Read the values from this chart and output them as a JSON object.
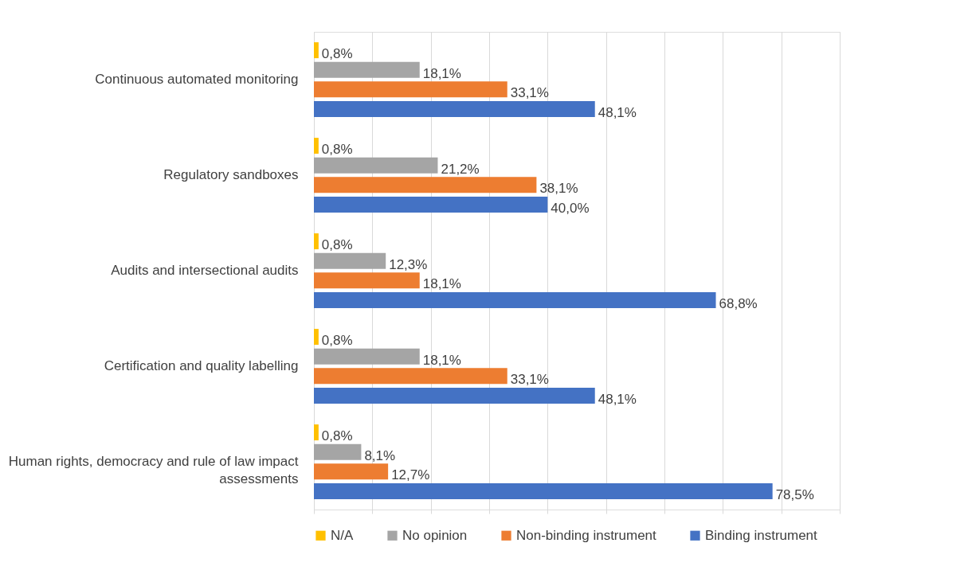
{
  "chart_data": {
    "type": "bar",
    "orientation": "horizontal",
    "categories": [
      "Continuous automated monitoring",
      "Regulatory sandboxes",
      "Audits and intersectional audits",
      "Certification and quality labelling",
      "Human rights, democracy and rule of law impact assessments"
    ],
    "series": [
      {
        "name": "N/A",
        "color": "#ffc000",
        "values": [
          0.8,
          0.8,
          0.8,
          0.8,
          0.8
        ],
        "value_labels": [
          "0,8%",
          "0,8%",
          "0,8%",
          "0,8%",
          "0,8%"
        ]
      },
      {
        "name": "No opinion",
        "color": "#a5a5a5",
        "values": [
          18.1,
          21.2,
          12.3,
          18.1,
          8.1
        ],
        "value_labels": [
          "18,1%",
          "21,2%",
          "12,3%",
          "18,1%",
          "8,1%"
        ]
      },
      {
        "name": "Non-binding instrument",
        "color": "#ed7d31",
        "values": [
          33.1,
          38.1,
          18.1,
          33.1,
          12.7
        ],
        "value_labels": [
          "33,1%",
          "38,1%",
          "18,1%",
          "33,1%",
          "12,7%"
        ]
      },
      {
        "name": "Binding instrument",
        "color": "#4472c4",
        "values": [
          48.1,
          40.0,
          68.8,
          48.1,
          78.5
        ],
        "value_labels": [
          "48,1%",
          "40,0%",
          "68,8%",
          "48,1%",
          "78,5%"
        ]
      }
    ],
    "xlim": [
      0,
      90
    ],
    "xticks": [
      {
        "value": 0,
        "label": null
      },
      {
        "value": 10,
        "label": null
      },
      {
        "value": 20,
        "label": null
      },
      {
        "value": 30,
        "label": null
      },
      {
        "value": 40,
        "label": null
      },
      {
        "value": 50,
        "label": null
      },
      {
        "value": 60,
        "label": null
      },
      {
        "value": 70,
        "label": null
      },
      {
        "value": 80,
        "label": null
      },
      {
        "value": 90,
        "label": null
      }
    ],
    "tick_labels": "y",
    "grid": "x",
    "legend": "bottom"
  }
}
